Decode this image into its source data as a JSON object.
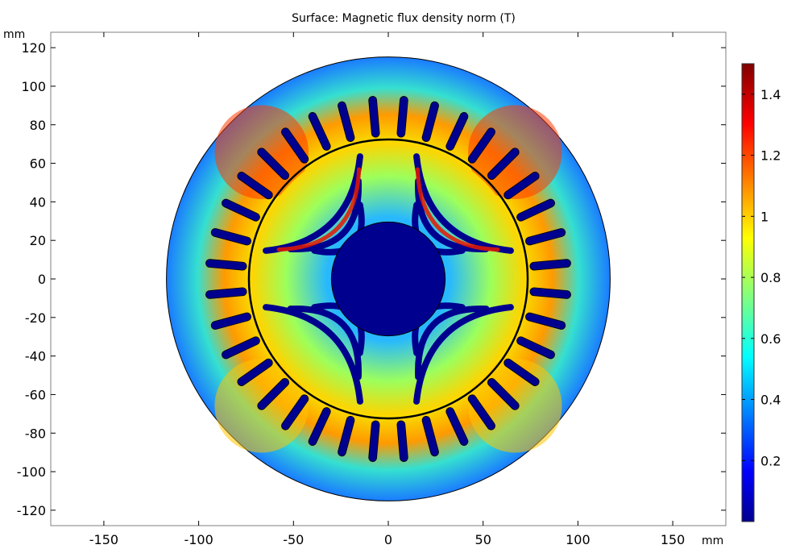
{
  "chart_data": {
    "type": "heatmap",
    "title": "Surface: Magnetic flux density norm (T)",
    "x_unit": "mm",
    "y_unit": "mm",
    "xlim": [
      -178,
      178
    ],
    "ylim": [
      -128,
      128
    ],
    "x_ticks": [
      -150,
      -100,
      -50,
      0,
      50,
      100,
      150
    ],
    "y_ticks": [
      120,
      100,
      80,
      60,
      40,
      20,
      0,
      -20,
      -40,
      -60,
      -80,
      -100,
      -120
    ],
    "colorbar": {
      "min": 0.0,
      "max": 1.5,
      "ticks": [
        1.4,
        1.2,
        1,
        0.8,
        0.6,
        0.4,
        0.2
      ],
      "colormap": "jet"
    },
    "geometry": {
      "stator_outer_radius": 117,
      "stator_inner_radius": 72,
      "shaft_radius": 30,
      "stator_slot_count": 36,
      "rotor_poles": 4
    }
  },
  "colors": {
    "low": "#00008f",
    "mid_low": "#00c8ff",
    "mid": "#e8f000",
    "high": "#ff2800",
    "max": "#800000"
  }
}
